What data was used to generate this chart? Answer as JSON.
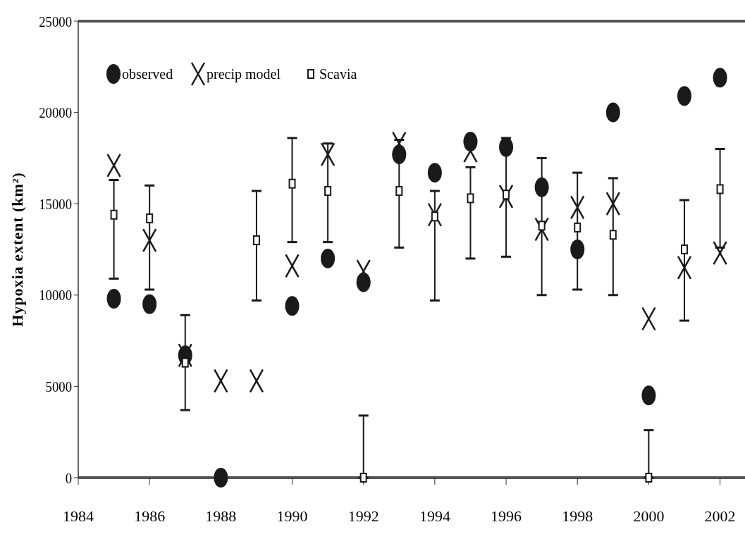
{
  "chart_data": {
    "type": "scatter",
    "ylabel": "Hypoxia extent (km²)",
    "x": [
      1985,
      1986,
      1987,
      1988,
      1989,
      1990,
      1991,
      1992,
      1993,
      1994,
      1995,
      1996,
      1997,
      1998,
      1999,
      2000,
      2001,
      2002
    ],
    "xlim": [
      1984,
      2002.7
    ],
    "xticks": [
      1984,
      1986,
      1988,
      1990,
      1992,
      1994,
      1996,
      1998,
      2000,
      2002
    ],
    "ylim": [
      0,
      25000
    ],
    "yticks": [
      0,
      5000,
      10000,
      15000,
      20000,
      25000
    ],
    "grid": false,
    "legend": "top left",
    "series": [
      {
        "name": "observed",
        "color": "#1a1a1a",
        "marker": "circle",
        "values": [
          9800,
          9500,
          6700,
          0,
          null,
          9400,
          12000,
          10700,
          17700,
          16700,
          18400,
          18100,
          15900,
          12500,
          20000,
          4500,
          20900,
          21900
        ]
      },
      {
        "name": "precip model",
        "color": "#1a1a1a",
        "marker": "cross",
        "values": [
          17100,
          13000,
          6700,
          5300,
          5300,
          11600,
          17700,
          11300,
          18300,
          14400,
          17900,
          15400,
          13600,
          14800,
          15000,
          8700,
          11500,
          12300
        ]
      },
      {
        "name": "Scavia",
        "color": "#1a1a1a",
        "marker": "square",
        "values": [
          14400,
          14200,
          6300,
          null,
          13000,
          16100,
          15700,
          0,
          15700,
          14300,
          15300,
          15500,
          13800,
          13700,
          13300,
          0,
          12500,
          15800
        ],
        "errors": [
          [
            10900,
            16300
          ],
          [
            10300,
            16000
          ],
          [
            3700,
            8900
          ],
          null,
          [
            9700,
            15700
          ],
          [
            12900,
            18600
          ],
          [
            12900,
            18300
          ],
          [
            0,
            3400
          ],
          [
            12600,
            18500
          ],
          [
            9700,
            15700
          ],
          [
            12000,
            17000
          ],
          [
            12100,
            18600
          ],
          [
            10000,
            17500
          ],
          [
            10300,
            16700
          ],
          [
            10000,
            16400
          ],
          [
            0,
            2600
          ],
          [
            8600,
            15200
          ],
          [
            12600,
            18000
          ]
        ]
      }
    ]
  }
}
